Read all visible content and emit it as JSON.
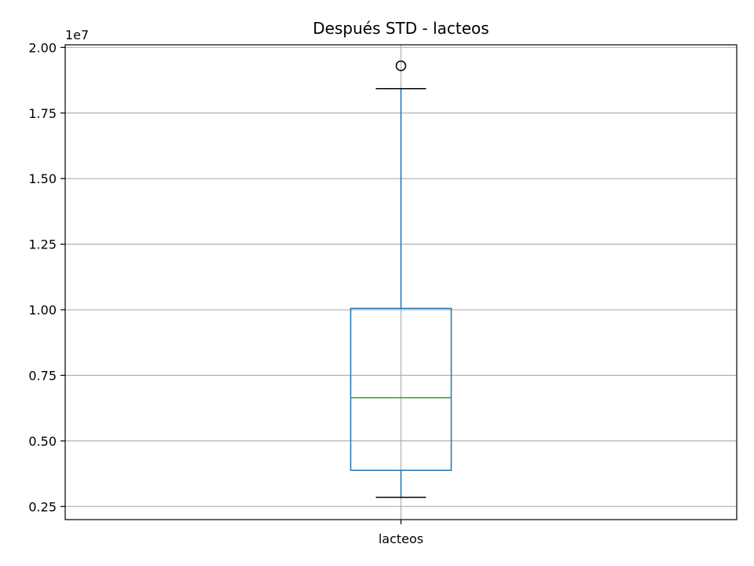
{
  "chart_data": {
    "type": "box",
    "title": "Después STD - lacteos",
    "xlabel": "",
    "ylabel": "",
    "categories": [
      "lacteos"
    ],
    "y_scale_label": "1e7",
    "y_scale_factor": 10000000,
    "ylim": [
      0.2,
      2.01
    ],
    "y_ticks": [
      0.25,
      0.5,
      0.75,
      1.0,
      1.25,
      1.5,
      1.75,
      2.0
    ],
    "y_tick_labels": [
      "0.25",
      "0.50",
      "0.75",
      "1.00",
      "1.25",
      "1.50",
      "1.75",
      "2.00"
    ],
    "grid": true,
    "legend": "none",
    "series": [
      {
        "category": "lacteos",
        "whisker_low": 0.285,
        "q1": 0.388,
        "median": 0.665,
        "q3": 1.005,
        "whisker_high": 1.843,
        "outliers": [
          1.93
        ]
      }
    ],
    "colors": {
      "box": "#1f77b4",
      "median": "#2ca02c",
      "whisker_cap": "#000000",
      "outlier": "#000000"
    }
  }
}
